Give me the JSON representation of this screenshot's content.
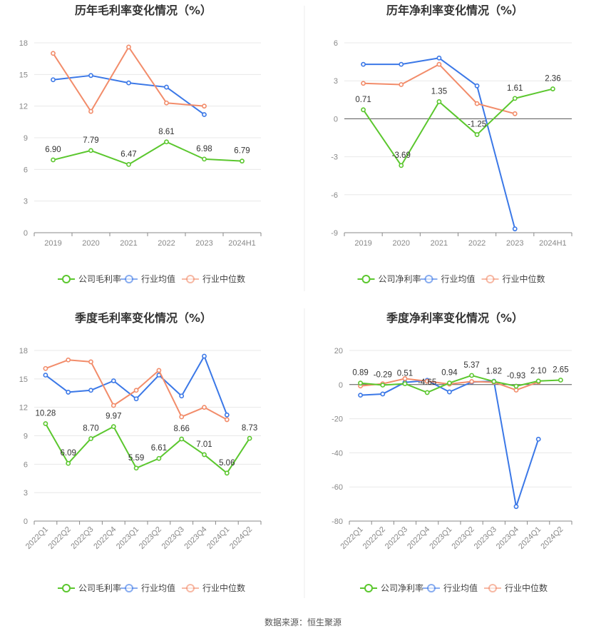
{
  "source": "数据来源：恒生聚源",
  "colors": {
    "company": "#5bc72e",
    "industry_avg": "#3b78e7",
    "industry_median": "#f28c6a"
  },
  "legends": {
    "gross": [
      "公司毛利率",
      "行业均值",
      "行业中位数"
    ],
    "net": [
      "公司净利率",
      "行业均值",
      "行业中位数"
    ]
  },
  "chart_data": [
    {
      "type": "line",
      "title": "历年毛利率变化情况（%）",
      "categories": [
        "2019",
        "2020",
        "2021",
        "2022",
        "2023",
        "2024H1"
      ],
      "ylim": [
        0,
        18
      ],
      "yticks": [
        0,
        3,
        6,
        9,
        12,
        15,
        18
      ],
      "series": [
        {
          "name": "公司毛利率",
          "color_key": "company",
          "values": [
            6.9,
            7.79,
            6.47,
            8.61,
            6.98,
            6.79
          ],
          "labels": [
            "6.90",
            "7.79",
            "6.47",
            "8.61",
            "6.98",
            "6.79"
          ]
        },
        {
          "name": "行业均值",
          "color_key": "industry_avg",
          "values": [
            14.5,
            14.9,
            14.2,
            13.8,
            11.2,
            null
          ]
        },
        {
          "name": "行业中位数",
          "color_key": "industry_median",
          "values": [
            17.0,
            11.5,
            17.6,
            12.3,
            12.0,
            null
          ]
        }
      ],
      "rotate_ticks": false
    },
    {
      "type": "line",
      "title": "历年净利率变化情况（%）",
      "categories": [
        "2019",
        "2020",
        "2021",
        "2022",
        "2023",
        "2024H1"
      ],
      "ylim": [
        -9,
        6
      ],
      "yticks": [
        -9,
        -6,
        -3,
        0,
        3,
        6
      ],
      "series": [
        {
          "name": "公司净利率",
          "color_key": "company",
          "values": [
            0.71,
            -3.69,
            1.35,
            -1.25,
            1.61,
            2.36
          ],
          "labels": [
            "0.71",
            "-3.69",
            "1.35",
            "-1.25",
            "1.61",
            "2.36"
          ]
        },
        {
          "name": "行业均值",
          "color_key": "industry_avg",
          "values": [
            4.3,
            4.3,
            4.8,
            2.6,
            -8.7,
            null
          ]
        },
        {
          "name": "行业中位数",
          "color_key": "industry_median",
          "values": [
            2.8,
            2.7,
            4.3,
            1.2,
            0.4,
            null
          ]
        }
      ],
      "rotate_ticks": false
    },
    {
      "type": "line",
      "title": "季度毛利率变化情况（%）",
      "categories": [
        "2022Q1",
        "2022Q2",
        "2022Q3",
        "2022Q4",
        "2023Q1",
        "2023Q2",
        "2023Q3",
        "2023Q4",
        "2024Q1",
        "2024Q2"
      ],
      "ylim": [
        0,
        18
      ],
      "yticks": [
        0,
        3,
        6,
        9,
        12,
        15,
        18
      ],
      "series": [
        {
          "name": "公司毛利率",
          "color_key": "company",
          "values": [
            10.28,
            6.09,
            8.7,
            9.97,
            5.59,
            6.61,
            8.66,
            7.01,
            5.06,
            8.73
          ],
          "labels": [
            "10.28",
            "6.09",
            "8.70",
            "9.97",
            "5.59",
            "6.61",
            "8.66",
            "7.01",
            "5.06",
            "8.73"
          ]
        },
        {
          "name": "行业均值",
          "color_key": "industry_avg",
          "values": [
            15.4,
            13.6,
            13.8,
            14.8,
            12.9,
            15.4,
            13.2,
            17.4,
            11.2,
            null
          ]
        },
        {
          "name": "行业中位数",
          "color_key": "industry_median",
          "values": [
            16.1,
            17.0,
            16.8,
            12.2,
            13.8,
            15.9,
            11.0,
            12.0,
            10.7,
            null
          ]
        }
      ],
      "rotate_ticks": true
    },
    {
      "type": "line",
      "title": "季度净利率变化情况（%）",
      "categories": [
        "2022Q1",
        "2022Q2",
        "2022Q3",
        "2022Q4",
        "2023Q1",
        "2023Q2",
        "2023Q3",
        "2023Q4",
        "2024Q1",
        "2024Q2"
      ],
      "ylim": [
        -80,
        20
      ],
      "yticks": [
        -80,
        -60,
        -40,
        -20,
        0,
        20
      ],
      "series": [
        {
          "name": "公司净利率",
          "color_key": "company",
          "values": [
            0.89,
            -0.29,
            0.51,
            -4.65,
            0.94,
            5.37,
            1.82,
            -0.93,
            2.1,
            2.65
          ],
          "labels": [
            "0.89",
            "-0.29",
            "0.51",
            "-4.65",
            "0.94",
            "5.37",
            "1.82",
            "-0.93",
            "2.10",
            "2.65"
          ]
        },
        {
          "name": "行业均值",
          "color_key": "industry_avg",
          "values": [
            -6.2,
            -5.5,
            1.3,
            2.5,
            -4.3,
            1.5,
            2.0,
            -71.5,
            -32.0,
            null
          ]
        },
        {
          "name": "行业中位数",
          "color_key": "industry_median",
          "values": [
            -0.8,
            0.5,
            3.5,
            2.0,
            0.3,
            1.8,
            1.4,
            -3.2,
            1.5,
            null
          ]
        }
      ],
      "rotate_ticks": true
    }
  ]
}
